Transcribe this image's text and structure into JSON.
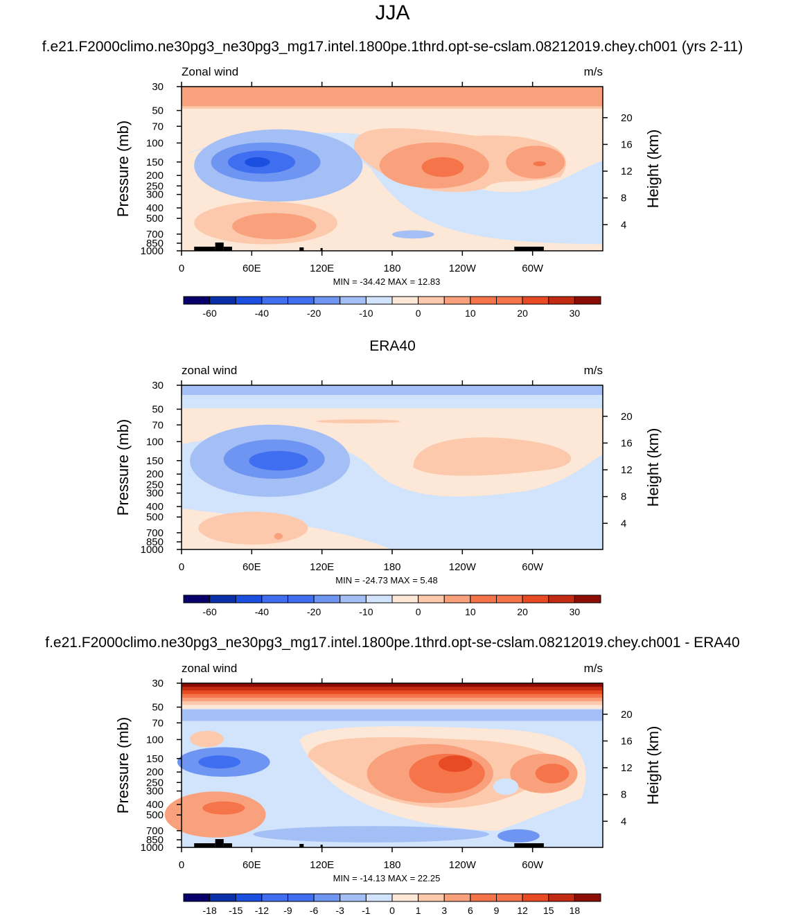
{
  "page": {
    "main_title": "JJA",
    "case_title": "f.e21.F2000climo.ne30pg3_ne30pg3_mg17.intel.1800pe.1thrd.opt-se-cslam.08212019.chey.ch001 (yrs 2-11)",
    "panel2_title": "ERA40",
    "diff_title": "f.e21.F2000climo.ne30pg3_ne30pg3_mg17.intel.1800pe.1thrd.opt-se-cslam.08212019.chey.ch001 - ERA40"
  },
  "colors": {
    "scale": [
      "#08006b",
      "#0a2fa8",
      "#1a4fe0",
      "#3f6ff0",
      "#6f95f2",
      "#a4bff5",
      "#d2e4fb",
      "#fde7d6",
      "#fcc9ad",
      "#f9a17c",
      "#f5744a",
      "#e84a23",
      "#c22a12",
      "#8c0d05"
    ],
    "terrain": "#000000"
  },
  "chart_data": [
    {
      "type": "heatmap",
      "name": "model",
      "left_label": "Zonal wind",
      "right_label": "m/s",
      "ylabel": "Pressure (mb)",
      "y2label": "Height (km)",
      "xticks": [
        "0",
        "60E",
        "120E",
        "180",
        "120W",
        "60W"
      ],
      "yticks": [
        "30",
        "50",
        "70",
        "100",
        "150",
        "200",
        "250",
        "300",
        "400",
        "500",
        "700",
        "850",
        "1000"
      ],
      "y2ticks": [
        "20",
        "16",
        "12",
        "8",
        "4"
      ],
      "stats": "MIN = -34.42  MAX =  12.83",
      "min": -34.42,
      "max": 12.83,
      "contour_levels": [
        -70,
        -60,
        -50,
        -40,
        -30,
        -20,
        -15,
        -10,
        -5,
        0,
        5,
        10,
        15,
        20,
        25,
        30,
        35
      ],
      "colorbar_labels": [
        "-60",
        "-40",
        "-20",
        "-10",
        "0",
        "10",
        "20",
        "30"
      ],
      "x_range": [
        0,
        360
      ],
      "y_range_mb": [
        30,
        1000
      ]
    },
    {
      "type": "heatmap",
      "name": "obs",
      "left_label": "zonal wind",
      "right_label": "m/s",
      "ylabel": "Pressure (mb)",
      "y2label": "Height (km)",
      "xticks": [
        "0",
        "60E",
        "120E",
        "180",
        "120W",
        "60W"
      ],
      "yticks": [
        "30",
        "50",
        "70",
        "100",
        "150",
        "200",
        "250",
        "300",
        "400",
        "500",
        "700",
        "850",
        "1000"
      ],
      "y2ticks": [
        "20",
        "16",
        "12",
        "8",
        "4"
      ],
      "stats": "MIN = -24.73  MAX =   5.48",
      "min": -24.73,
      "max": 5.48,
      "contour_levels": [
        -70,
        -60,
        -50,
        -40,
        -30,
        -20,
        -15,
        -10,
        -5,
        0,
        5,
        10,
        15,
        20,
        25,
        30,
        35
      ],
      "colorbar_labels": [
        "-60",
        "-40",
        "-20",
        "-10",
        "0",
        "10",
        "20",
        "30"
      ],
      "x_range": [
        0,
        360
      ],
      "y_range_mb": [
        30,
        1000
      ]
    },
    {
      "type": "heatmap",
      "name": "difference",
      "left_label": "zonal wind",
      "right_label": "m/s",
      "ylabel": "Pressure (mb)",
      "y2label": "Height (km)",
      "xticks": [
        "0",
        "60E",
        "120E",
        "180",
        "120W",
        "60W"
      ],
      "yticks": [
        "30",
        "50",
        "70",
        "100",
        "150",
        "200",
        "250",
        "300",
        "400",
        "500",
        "700",
        "850",
        "1000"
      ],
      "y2ticks": [
        "20",
        "16",
        "12",
        "8",
        "4"
      ],
      "stats": "MIN = -14.13  MAX =  22.25",
      "min": -14.13,
      "max": 22.25,
      "contour_levels": [
        -21,
        -18,
        -15,
        -12,
        -9,
        -6,
        -3,
        -1,
        0,
        1,
        3,
        6,
        9,
        12,
        15,
        18,
        21
      ],
      "colorbar_labels": [
        "-18",
        "-15",
        "-12",
        "-9",
        "-6",
        "-3",
        "-1",
        "0",
        "1",
        "3",
        "6",
        "9",
        "12",
        "15",
        "18"
      ],
      "x_range": [
        0,
        360
      ],
      "y_range_mb": [
        30,
        1000
      ]
    }
  ]
}
